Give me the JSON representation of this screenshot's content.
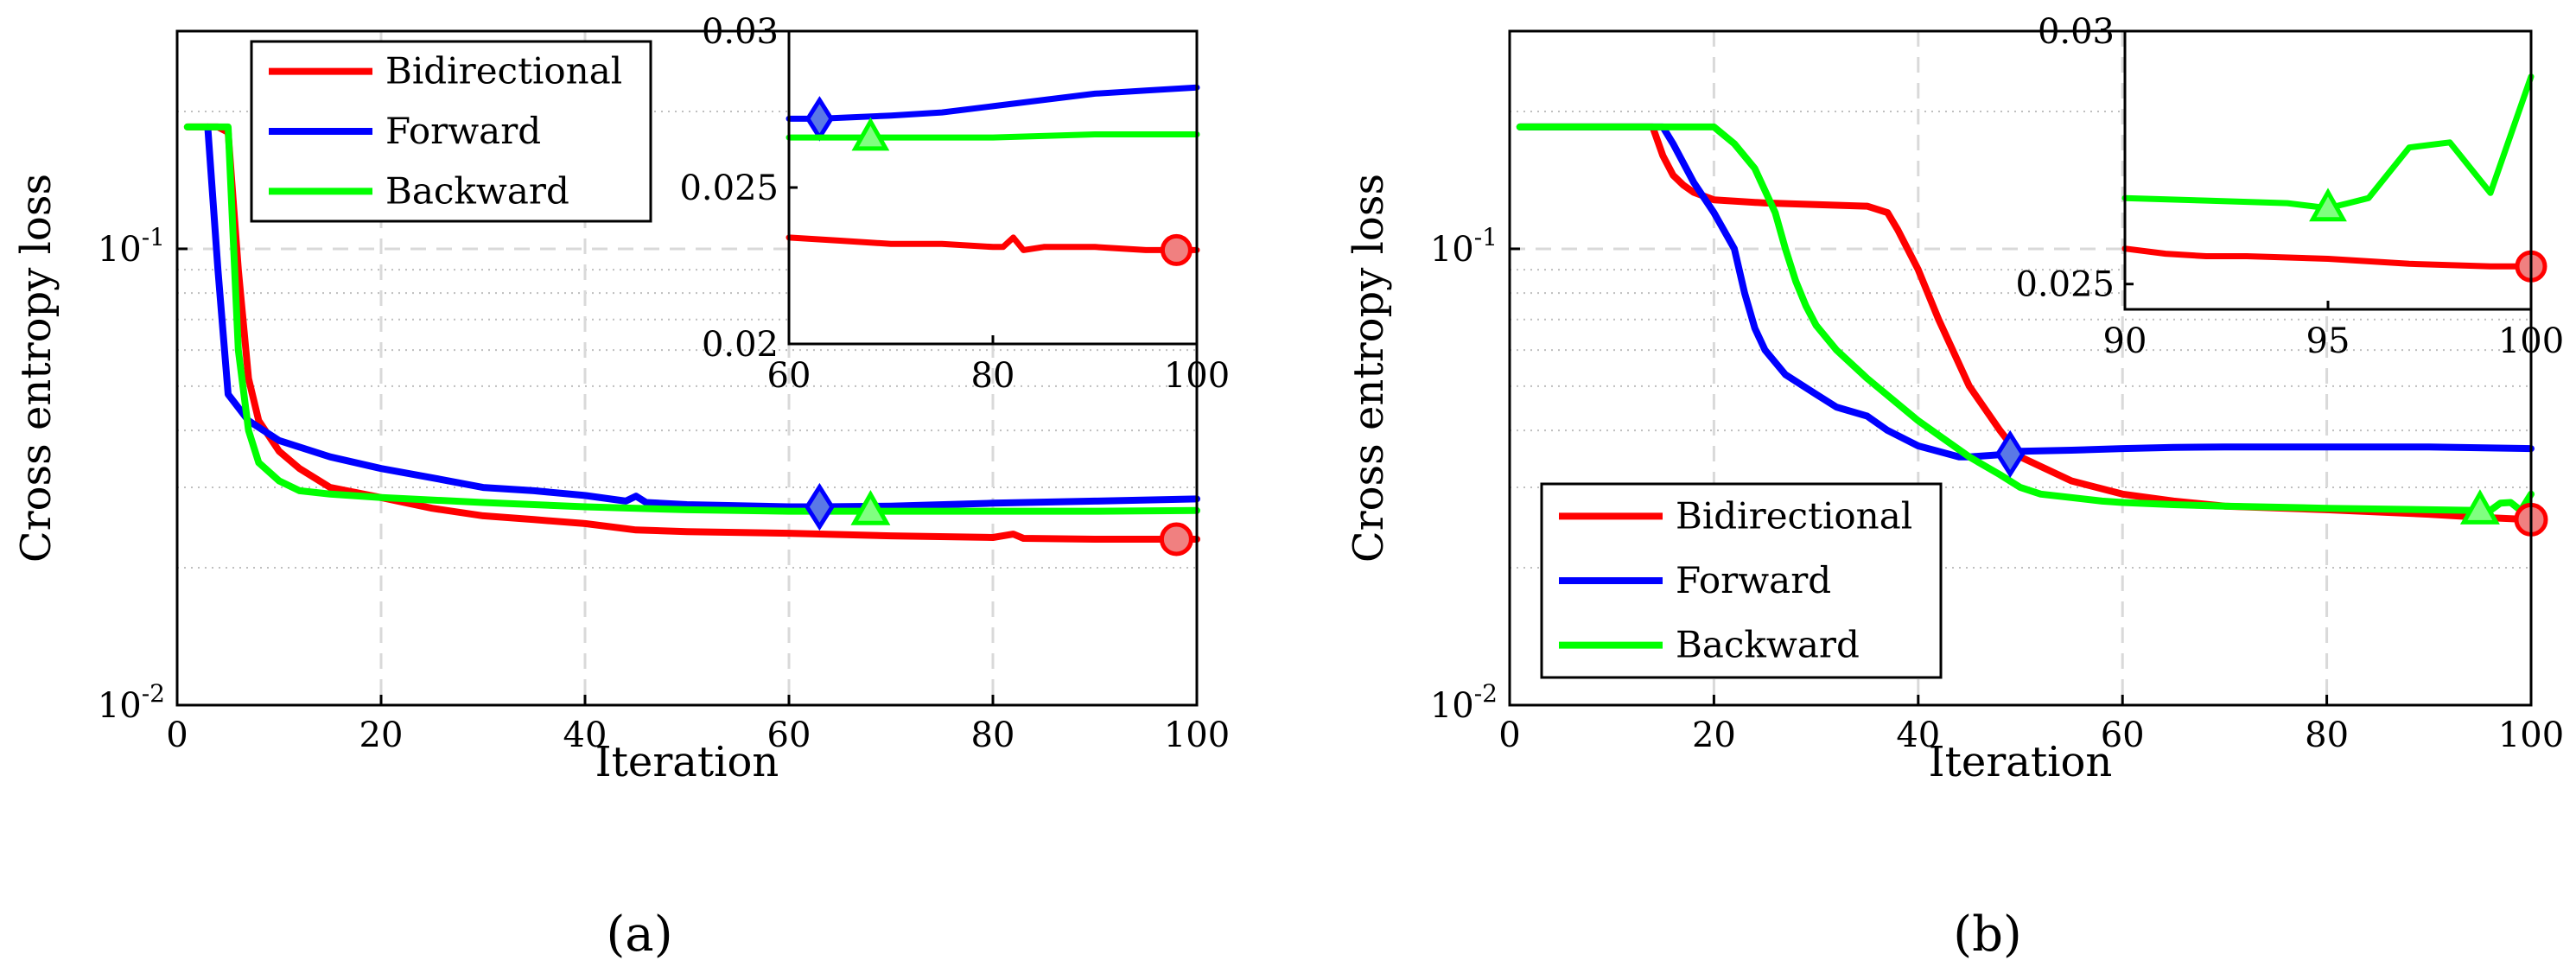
{
  "colors": {
    "bidirectional": "#ff0000",
    "forward": "#0000ff",
    "backward": "#00ff00",
    "bidirectional_marker_fill": "#f08080",
    "forward_marker_fill": "#5a78e6",
    "backward_marker_fill": "#80ff80",
    "grid_major": "#d9d9d9",
    "grid_minor": "#bfbfbf"
  },
  "chart_data": [
    {
      "id": "a",
      "type": "line",
      "caption": "(a)",
      "xlabel": "Iteration",
      "ylabel": "Cross entropy loss",
      "yscale": "log",
      "xlim": [
        0,
        100
      ],
      "ylim": [
        0.01,
        0.3
      ],
      "xticks": [
        "0",
        "20",
        "40",
        "60",
        "80",
        "100"
      ],
      "yticks": [
        {
          "value": 0.1,
          "base": "10",
          "exp": "-1"
        },
        {
          "value": 0.01,
          "base": "10",
          "exp": "-2"
        }
      ],
      "legend": {
        "position": "top-left",
        "entries": [
          "Bidirectional",
          "Forward",
          "Backward"
        ]
      },
      "series": [
        {
          "name": "Bidirectional",
          "color_key": "bidirectional",
          "x": [
            1,
            4,
            5,
            6,
            7,
            8,
            10,
            12,
            15,
            20,
            25,
            30,
            35,
            40,
            45,
            50,
            60,
            70,
            80,
            82,
            83,
            90,
            98,
            100
          ],
          "y": [
            0.185,
            0.185,
            0.18,
            0.09,
            0.052,
            0.042,
            0.036,
            0.033,
            0.03,
            0.0285,
            0.027,
            0.026,
            0.0255,
            0.025,
            0.0242,
            0.024,
            0.0238,
            0.0235,
            0.0233,
            0.0237,
            0.0232,
            0.0231,
            0.0231,
            0.0231
          ],
          "marker": {
            "shape": "circle",
            "x": 98,
            "y": 0.0231
          }
        },
        {
          "name": "Forward",
          "color_key": "forward",
          "x": [
            3,
            4,
            5,
            7,
            10,
            15,
            20,
            25,
            30,
            35,
            40,
            44,
            45,
            46,
            50,
            60,
            63,
            70,
            80,
            90,
            100
          ],
          "y": [
            0.185,
            0.09,
            0.048,
            0.042,
            0.038,
            0.035,
            0.033,
            0.0315,
            0.03,
            0.0295,
            0.0288,
            0.028,
            0.0287,
            0.0278,
            0.0275,
            0.0272,
            0.0272,
            0.0273,
            0.0277,
            0.028,
            0.0283
          ],
          "marker": {
            "shape": "diamond",
            "x": 63,
            "y": 0.0272
          }
        },
        {
          "name": "Backward",
          "color_key": "backward",
          "x": [
            1,
            5,
            6,
            7,
            8,
            10,
            12,
            15,
            20,
            30,
            40,
            50,
            60,
            68,
            70,
            80,
            90,
            100
          ],
          "y": [
            0.185,
            0.185,
            0.06,
            0.04,
            0.034,
            0.031,
            0.0295,
            0.029,
            0.0285,
            0.0278,
            0.0272,
            0.0268,
            0.0266,
            0.0266,
            0.0266,
            0.0266,
            0.0266,
            0.0267
          ],
          "marker": {
            "shape": "triangle",
            "x": 68,
            "y": 0.0266
          }
        }
      ],
      "inset": {
        "xlim": [
          60,
          100
        ],
        "ylim": [
          0.02,
          0.03
        ],
        "xticks": [
          "60",
          "80",
          "100"
        ],
        "yticks": [
          "0.02",
          "0.025",
          "0.03"
        ],
        "series": [
          {
            "name": "Bidirectional",
            "color_key": "bidirectional",
            "x": [
              60,
              65,
              70,
              75,
              80,
              81,
              82,
              83,
              85,
              90,
              95,
              98,
              100
            ],
            "y": [
              0.0234,
              0.0233,
              0.0232,
              0.0232,
              0.0231,
              0.0231,
              0.0234,
              0.023,
              0.0231,
              0.0231,
              0.023,
              0.023,
              0.023
            ],
            "marker": {
              "shape": "circle",
              "x": 98,
              "y": 0.023
            }
          },
          {
            "name": "Forward",
            "color_key": "forward",
            "x": [
              60,
              63,
              70,
              75,
              80,
              85,
              90,
              95,
              100
            ],
            "y": [
              0.0272,
              0.0272,
              0.0273,
              0.0274,
              0.0276,
              0.0278,
              0.028,
              0.0281,
              0.0282
            ],
            "marker": {
              "shape": "diamond",
              "x": 63,
              "y": 0.0272
            }
          },
          {
            "name": "Backward",
            "color_key": "backward",
            "x": [
              60,
              68,
              70,
              80,
              90,
              100
            ],
            "y": [
              0.0266,
              0.0266,
              0.0266,
              0.0266,
              0.0267,
              0.0267
            ],
            "marker": {
              "shape": "triangle",
              "x": 68,
              "y": 0.0266
            }
          }
        ]
      }
    },
    {
      "id": "b",
      "type": "line",
      "caption": "(b)",
      "xlabel": "Iteration",
      "ylabel": "Cross entropy loss",
      "yscale": "log",
      "xlim": [
        0,
        100
      ],
      "ylim": [
        0.01,
        0.3
      ],
      "xticks": [
        "0",
        "20",
        "40",
        "60",
        "80",
        "100"
      ],
      "yticks": [
        {
          "value": 0.1,
          "base": "10",
          "exp": "-1"
        },
        {
          "value": 0.01,
          "base": "10",
          "exp": "-2"
        }
      ],
      "legend": {
        "position": "bottom-left",
        "entries": [
          "Bidirectional",
          "Forward",
          "Backward"
        ]
      },
      "series": [
        {
          "name": "Bidirectional",
          "color_key": "bidirectional",
          "x": [
            1,
            14,
            15,
            16,
            17,
            18,
            20,
            25,
            30,
            35,
            37,
            38,
            40,
            42,
            45,
            48,
            50,
            55,
            60,
            65,
            70,
            80,
            90,
            95,
            100
          ],
          "y": [
            0.185,
            0.185,
            0.16,
            0.145,
            0.138,
            0.133,
            0.128,
            0.126,
            0.125,
            0.124,
            0.12,
            0.11,
            0.09,
            0.07,
            0.05,
            0.04,
            0.035,
            0.031,
            0.029,
            0.028,
            0.0273,
            0.0268,
            0.0262,
            0.0258,
            0.0255
          ],
          "marker": {
            "shape": "circle",
            "x": 100,
            "y": 0.0255
          }
        },
        {
          "name": "Forward",
          "color_key": "forward",
          "x": [
            1,
            15,
            16,
            18,
            20,
            22,
            23,
            24,
            25,
            27,
            30,
            32,
            35,
            37,
            40,
            44,
            45,
            49,
            50,
            55,
            60,
            65,
            70,
            80,
            90,
            100
          ],
          "y": [
            0.185,
            0.185,
            0.17,
            0.14,
            0.12,
            0.1,
            0.08,
            0.067,
            0.06,
            0.053,
            0.048,
            0.045,
            0.043,
            0.04,
            0.037,
            0.035,
            0.035,
            0.0355,
            0.036,
            0.0362,
            0.0365,
            0.0367,
            0.0368,
            0.0368,
            0.0368,
            0.0365
          ],
          "marker": {
            "shape": "diamond",
            "x": 49,
            "y": 0.0355
          }
        },
        {
          "name": "Backward",
          "color_key": "backward",
          "x": [
            1,
            20,
            22,
            24,
            26,
            27,
            28,
            29,
            30,
            32,
            35,
            40,
            45,
            48,
            50,
            52,
            55,
            58,
            60,
            65,
            70,
            80,
            90,
            95,
            96,
            97,
            98,
            99,
            100
          ],
          "y": [
            0.185,
            0.185,
            0.17,
            0.15,
            0.12,
            0.1,
            0.085,
            0.075,
            0.068,
            0.06,
            0.052,
            0.042,
            0.035,
            0.032,
            0.03,
            0.029,
            0.0285,
            0.028,
            0.0278,
            0.0275,
            0.0273,
            0.027,
            0.0268,
            0.0267,
            0.0267,
            0.0277,
            0.0278,
            0.0267,
            0.029
          ],
          "marker": {
            "shape": "triangle",
            "x": 95,
            "y": 0.0267
          }
        }
      ],
      "inset": {
        "xlim": [
          90,
          100
        ],
        "ylim": [
          0.0245,
          0.03
        ],
        "xticks": [
          "90",
          "95",
          "100"
        ],
        "yticks": [
          "0.025",
          "0.03"
        ],
        "series": [
          {
            "name": "Bidirectional",
            "color_key": "bidirectional",
            "x": [
              90,
              91,
              92,
              93,
              95,
              97,
              99,
              100
            ],
            "y": [
              0.0257,
              0.0256,
              0.02555,
              0.02555,
              0.0255,
              0.0254,
              0.02535,
              0.02535
            ],
            "marker": {
              "shape": "circle",
              "x": 100,
              "y": 0.02535
            }
          },
          {
            "name": "Backward",
            "color_key": "backward",
            "x": [
              90,
              92,
              94,
              95,
              95.5,
              96,
              97,
              98,
              99,
              100
            ],
            "y": [
              0.0267,
              0.02665,
              0.0266,
              0.0265,
              0.0266,
              0.0267,
              0.0277,
              0.0278,
              0.0268,
              0.0291
            ],
            "marker": {
              "shape": "triangle",
              "x": 95,
              "y": 0.0265
            }
          }
        ]
      }
    }
  ]
}
